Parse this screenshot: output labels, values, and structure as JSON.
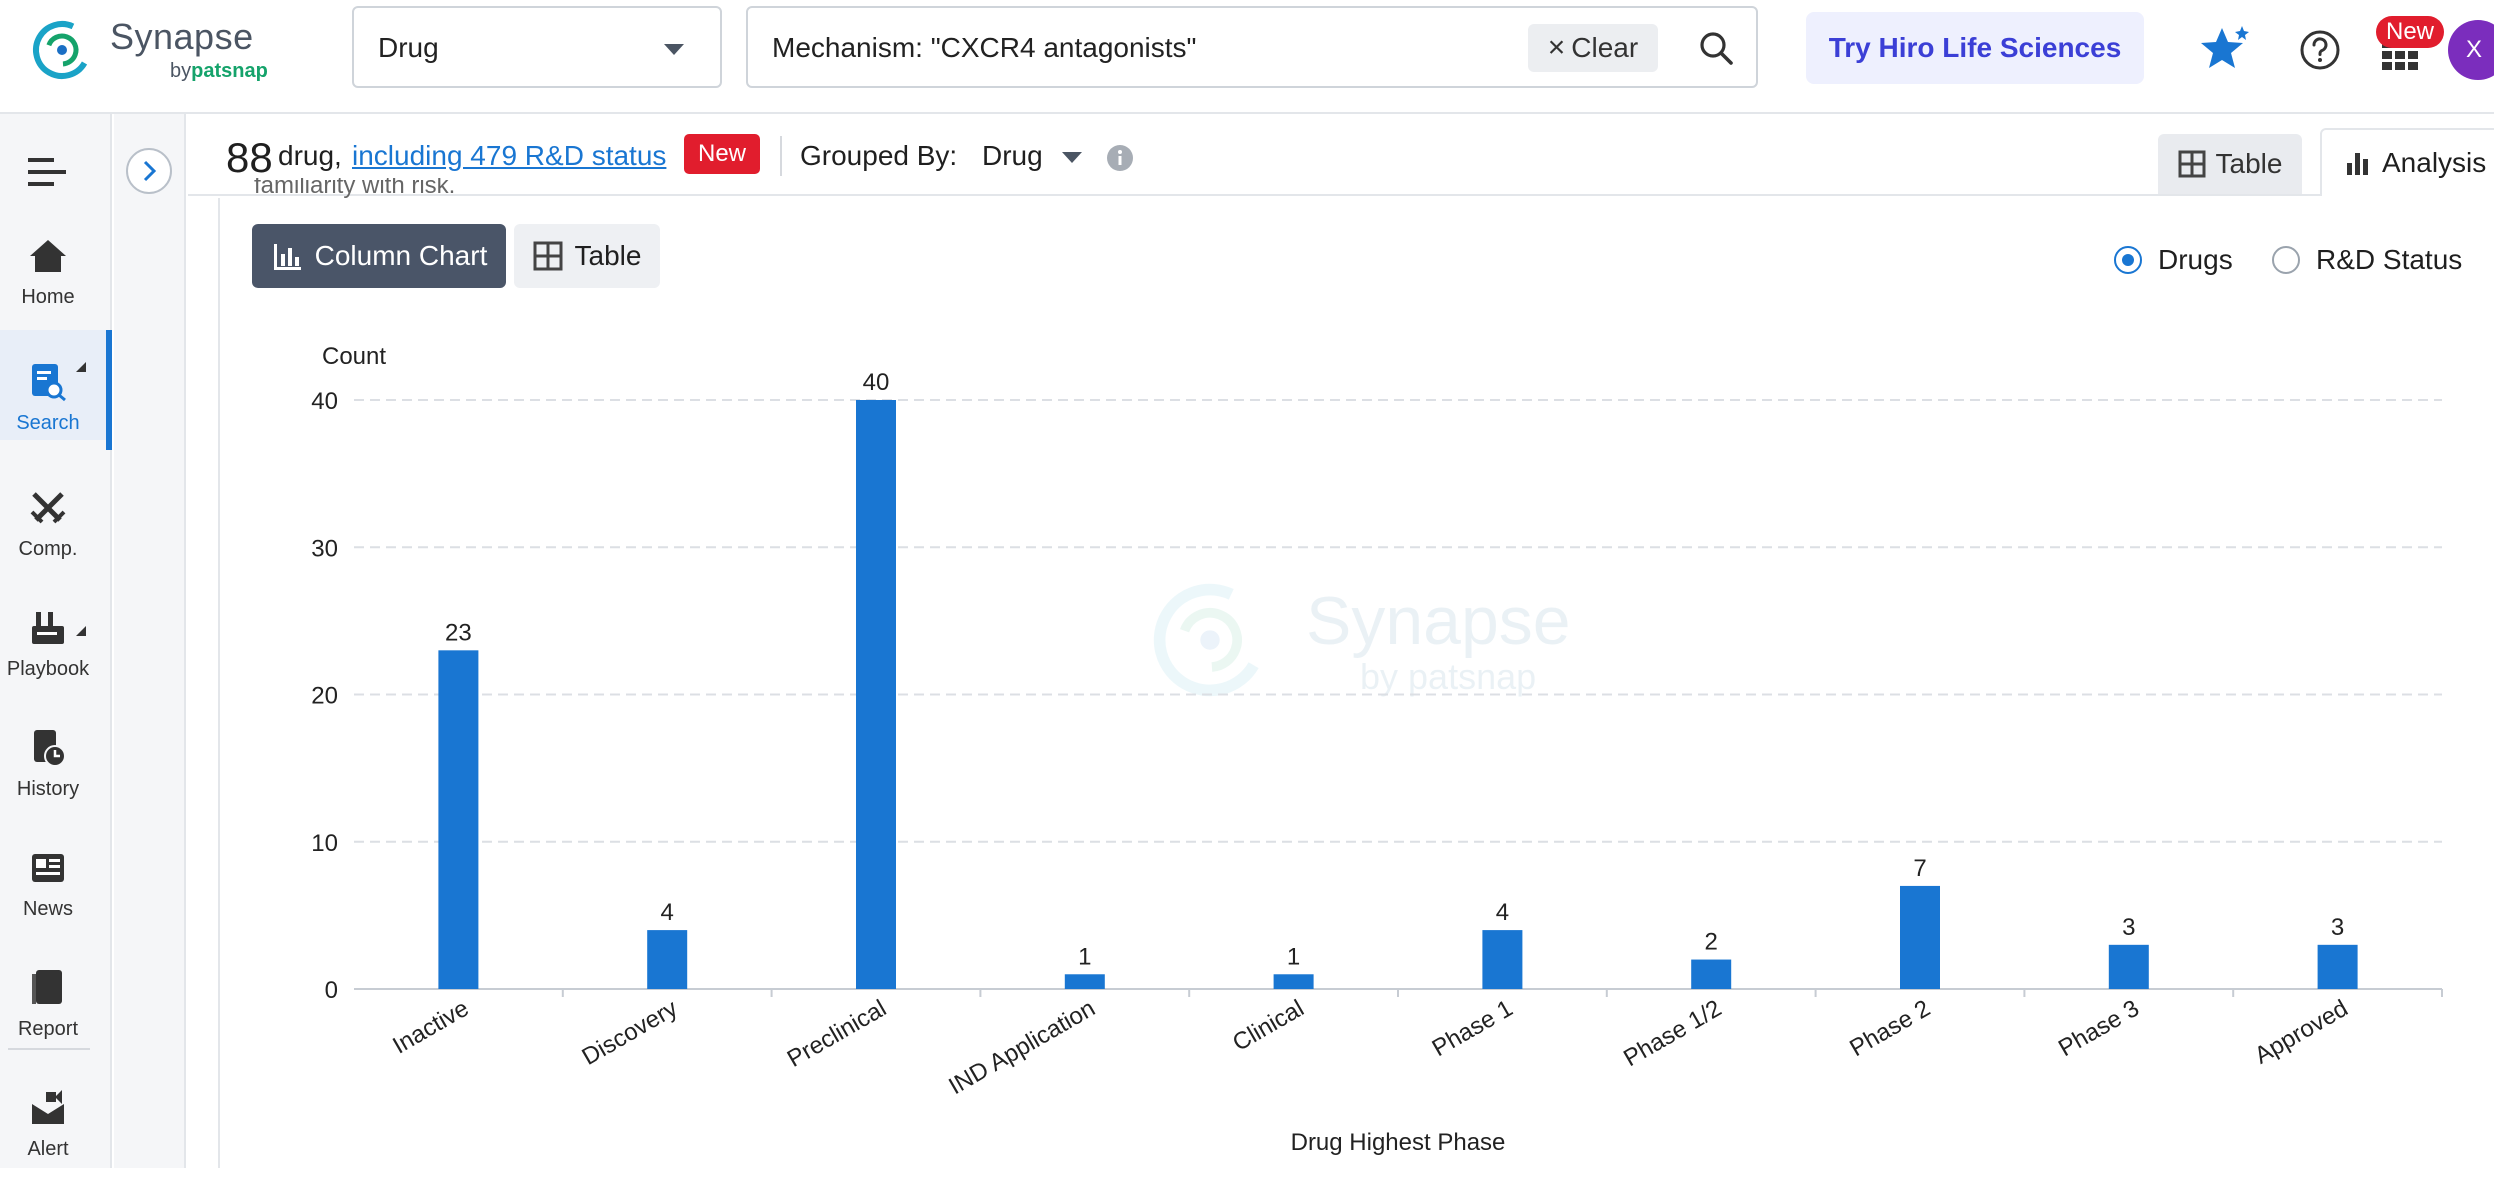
{
  "header": {
    "logo_name": "Synapse",
    "logo_sub_prefix": "by",
    "logo_sub_brand": "patsnap",
    "type_select": "Drug",
    "search_query": "Mechanism: \"CXCR4 antagonists\"",
    "clear_label": "Clear",
    "hiro_label": "Try Hiro Life Sciences",
    "apps_badge": "New",
    "avatar_initial": "X"
  },
  "sidebar": {
    "items": [
      {
        "label": "Home",
        "icon": "home-icon"
      },
      {
        "label": "Search",
        "icon": "search-doc-icon"
      },
      {
        "label": "Comp.",
        "icon": "swords-icon"
      },
      {
        "label": "Playbook",
        "icon": "playbook-icon"
      },
      {
        "label": "History",
        "icon": "history-icon"
      },
      {
        "label": "News",
        "icon": "news-icon"
      },
      {
        "label": "Report",
        "icon": "report-icon"
      },
      {
        "label": "Alert",
        "icon": "alert-icon"
      }
    ],
    "active": "Search"
  },
  "summary": {
    "count": "88",
    "count_word": "drug,",
    "rd_link": "including 479 R&D status",
    "new_badge": "New",
    "grouped_by_label": "Grouped By:",
    "grouped_by_value": "Drug"
  },
  "view_tabs": {
    "table": "Table",
    "analysis": "Analysis"
  },
  "truncated_text": "familiarity with risk.",
  "chart_controls": {
    "column_chart": "Column Chart",
    "table": "Table",
    "radio_drugs": "Drugs",
    "radio_rd": "R&D Status",
    "selected": "Drugs"
  },
  "watermark": {
    "line1": "Synapse",
    "line2": "by patsnap"
  },
  "colors": {
    "bar": "#1976d2",
    "accent": "#1976d2",
    "badge": "#e11d2d"
  },
  "chart_data": {
    "type": "bar",
    "categories": [
      "Inactive",
      "Discovery",
      "Preclinical",
      "IND Application",
      "Clinical",
      "Phase 1",
      "Phase 1/2",
      "Phase 2",
      "Phase 3",
      "Approved"
    ],
    "values": [
      23,
      4,
      40,
      1,
      1,
      4,
      2,
      7,
      3,
      3
    ],
    "ylabel": "Count",
    "xlabel": "Drug Highest Phase",
    "ylim": [
      0,
      40
    ],
    "yticks": [
      0,
      10,
      20,
      30,
      40
    ],
    "grid": true,
    "data_labels": true
  }
}
